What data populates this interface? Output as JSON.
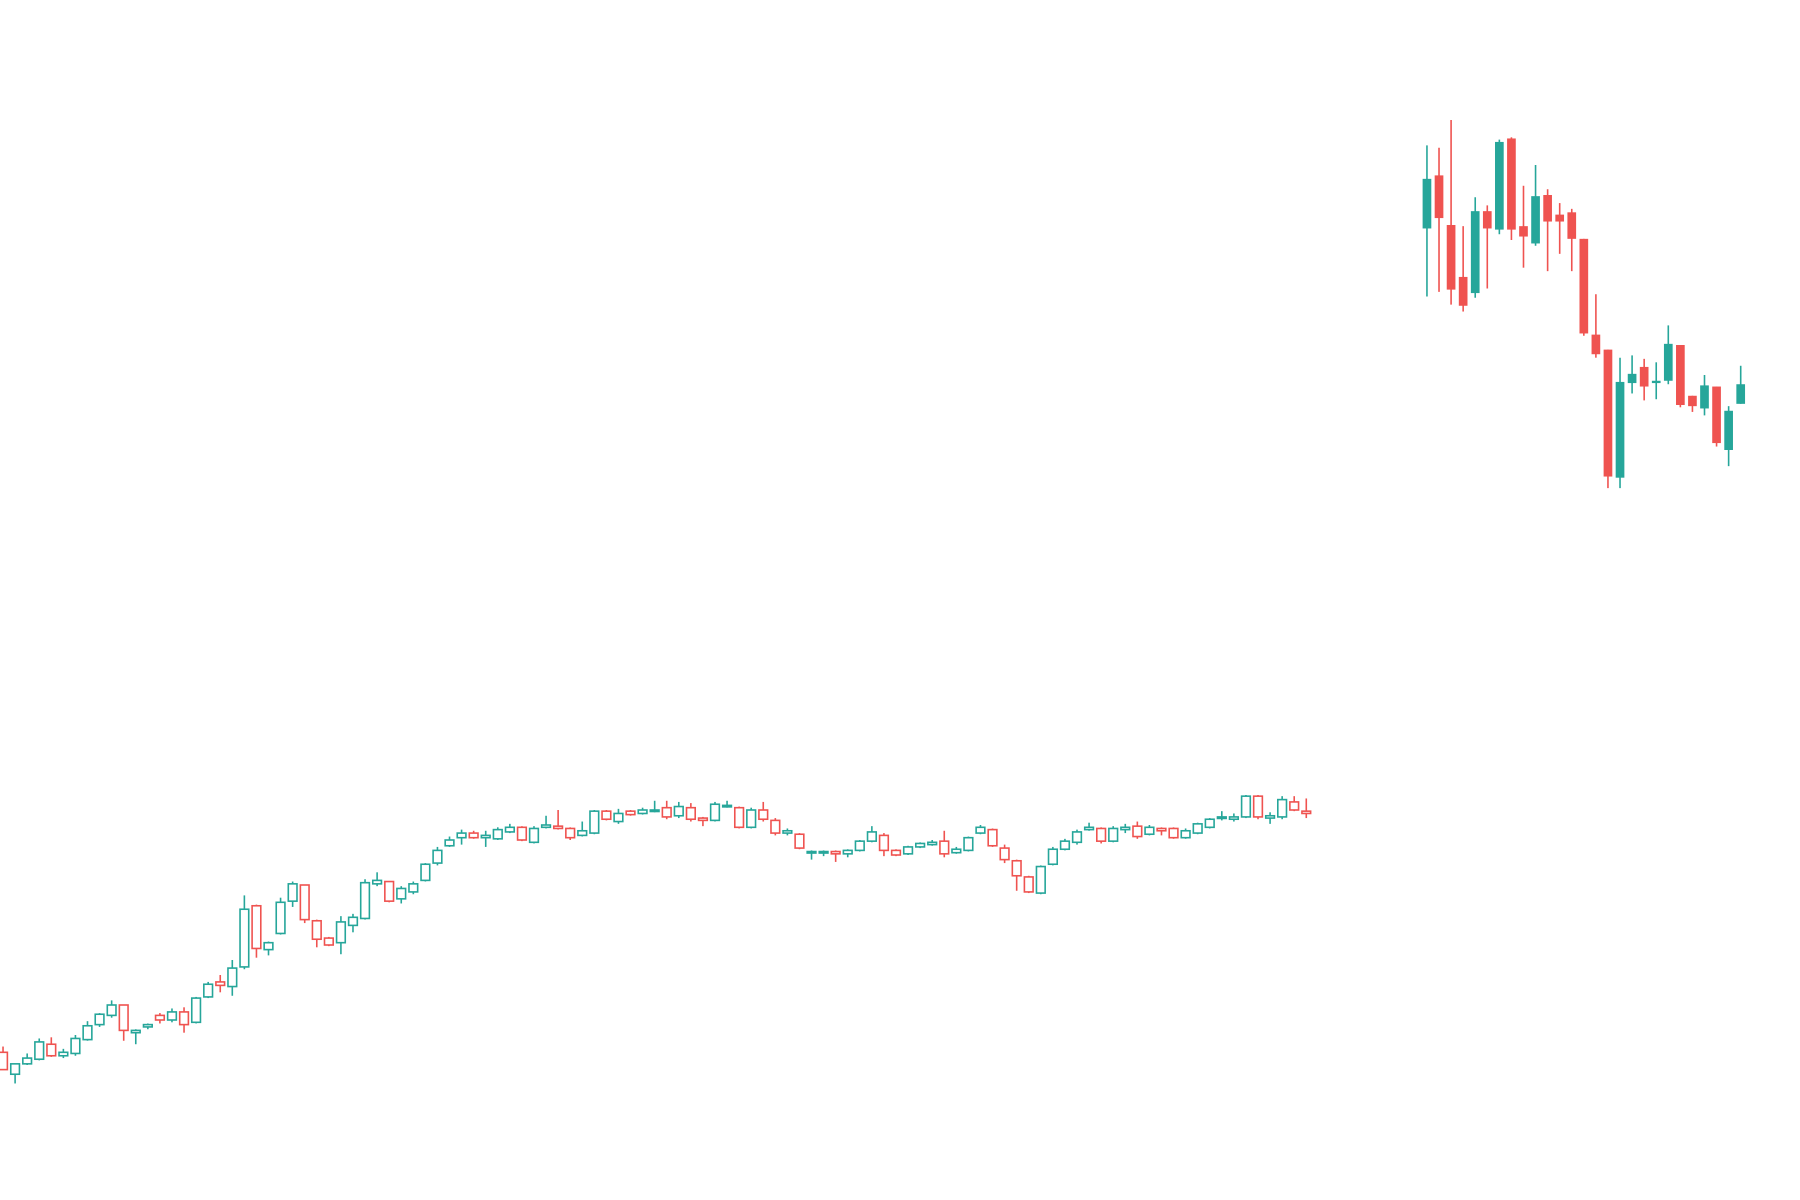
{
  "chart_data": {
    "type": "candlestick",
    "up_color": "#26a69a",
    "down_color": "#ef5350",
    "ylim": [
      0,
      1040
    ],
    "series": [
      {
        "hollow": true,
        "open": [
          128,
          109,
          118,
          122,
          135,
          125,
          127,
          139,
          152,
          160,
          169,
          145,
          150,
          160,
          156,
          163,
          154,
          176,
          189,
          185,
          202,
          255,
          217,
          231,
          259,
          273,
          242,
          227,
          223,
          238,
          244,
          274,
          276,
          261,
          267,
          277,
          292,
          307,
          314,
          318,
          314,
          313,
          319,
          323,
          310,
          323,
          324,
          322,
          316,
          318,
          337,
          328,
          337,
          335,
          337,
          340,
          333,
          340,
          331,
          329,
          341,
          340,
          323,
          338,
          329,
          318,
          317,
          301,
          301,
          302,
          300,
          303,
          311,
          316,
          303,
          300,
          306,
          308,
          311,
          301,
          303,
          318,
          321,
          305,
          294,
          280,
          266,
          291,
          304,
          310,
          321,
          322,
          311,
          321,
          324,
          317,
          322,
          322,
          314,
          318,
          323,
          331,
          330,
          332,
          350,
          331,
          332,
          345,
          337,
          null,
          null,
          null,
          null,
          null,
          null,
          null,
          null,
          null,
          null,
          null,
          null,
          null,
          null,
          null,
          null,
          null,
          null,
          null,
          null,
          null,
          null,
          null,
          null,
          null,
          null,
          null,
          null,
          null,
          null,
          null,
          null,
          null,
          null,
          null,
          null,
          null,
          null,
          null,
          null
        ],
        "high": [
          133,
          118,
          127,
          140,
          141,
          131,
          143,
          155,
          162,
          173,
          169,
          148,
          153,
          162,
          166,
          167,
          176,
          189,
          195,
          208,
          264,
          256,
          224,
          262,
          276,
          273,
          243,
          228,
          246,
          248,
          278,
          284,
          276,
          272,
          276,
          292,
          306,
          315,
          321,
          320,
          320,
          323,
          326,
          324,
          324,
          333,
          338,
          323,
          328,
          338,
          338,
          339,
          338,
          340,
          346,
          346,
          345,
          344,
          332,
          345,
          346,
          341,
          340,
          345,
          331,
          322,
          318,
          303,
          303,
          303,
          304,
          312,
          324,
          318,
          304,
          307,
          310,
          312,
          320,
          306,
          315,
          325,
          322,
          308,
          295,
          281,
          290,
          306,
          313,
          321,
          327,
          323,
          324,
          326,
          328,
          325,
          323,
          323,
          322,
          327,
          331,
          337,
          335,
          351,
          351,
          336,
          350,
          350,
          348,
          null,
          null,
          null,
          null,
          null,
          null,
          null,
          null,
          null,
          null,
          null,
          null,
          null,
          null,
          null,
          null,
          null,
          null,
          null,
          null,
          null,
          null,
          null,
          null,
          null,
          null,
          null,
          null,
          null,
          null,
          null,
          null,
          null,
          null,
          null,
          null,
          null,
          null,
          null,
          null
        ],
        "low": [
          113,
          101,
          117,
          121,
          124,
          123,
          125,
          138,
          150,
          158,
          138,
          135,
          148,
          153,
          154,
          145,
          153,
          175,
          180,
          177,
          200,
          210,
          212,
          230,
          254,
          240,
          219,
          220,
          213,
          232,
          243,
          272,
          258,
          257,
          265,
          276,
          290,
          306,
          308,
          313,
          306,
          312,
          318,
          311,
          309,
          322,
          321,
          312,
          315,
          317,
          329,
          326,
          333,
          334,
          336,
          330,
          331,
          328,
          324,
          328,
          340,
          322,
          322,
          328,
          316,
          316,
          304,
          295,
          298,
          293,
          297,
          302,
          310,
          298,
          298,
          299,
          305,
          307,
          297,
          300,
          302,
          317,
          306,
          292,
          268,
          266,
          265,
          290,
          303,
          308,
          320,
          309,
          310,
          318,
          313,
          316,
          316,
          313,
          313,
          317,
          322,
          329,
          328,
          331,
          330,
          326,
          330,
          337,
          331,
          null,
          null,
          null,
          null,
          null,
          null,
          null,
          null,
          null,
          null,
          null,
          null,
          null,
          null,
          null,
          null,
          null,
          null,
          null,
          null,
          null,
          null,
          null,
          null,
          null,
          null,
          null,
          null,
          null,
          null,
          null,
          null,
          null,
          null,
          null,
          null,
          null,
          null,
          null,
          null
        ],
        "close": [
          113,
          118,
          123,
          137,
          125,
          128,
          140,
          151,
          161,
          169,
          147,
          147,
          152,
          156,
          163,
          152,
          175,
          187,
          186,
          201,
          252,
          218,
          223,
          258,
          274,
          243,
          226,
          221,
          241,
          245,
          275,
          277,
          259,
          270,
          274,
          291,
          303,
          312,
          318,
          314,
          316,
          321,
          323,
          312,
          322,
          325,
          322,
          314,
          320,
          337,
          330,
          335,
          334,
          338,
          338,
          332,
          341,
          330,
          329,
          343,
          342,
          323,
          338,
          330,
          318,
          320,
          305,
          302,
          302,
          300,
          303,
          311,
          319,
          303,
          299,
          306,
          309,
          310,
          300,
          304,
          314,
          323,
          307,
          295,
          281,
          267,
          289,
          304,
          311,
          319,
          323,
          311,
          322,
          323,
          315,
          323,
          320,
          314,
          320,
          326,
          330,
          332,
          332,
          350,
          332,
          333,
          347,
          338,
          335,
          null,
          null,
          null,
          null,
          null,
          null,
          null,
          null,
          null,
          null,
          null,
          null,
          null,
          null,
          null,
          null,
          null,
          null,
          null,
          null,
          null,
          null,
          null,
          null,
          null,
          null,
          null,
          null,
          null,
          null,
          null,
          null,
          null,
          null,
          null,
          null,
          null,
          null,
          null,
          null
        ]
      },
      {
        "hollow": false,
        "open": [
          null,
          null,
          null,
          null,
          null,
          null,
          null,
          null,
          null,
          null,
          null,
          null,
          null,
          null,
          null,
          null,
          null,
          null,
          null,
          null,
          null,
          null,
          null,
          null,
          null,
          null,
          null,
          null,
          null,
          null,
          null,
          null,
          null,
          null,
          null,
          null,
          null,
          null,
          null,
          null,
          null,
          null,
          null,
          null,
          null,
          null,
          null,
          null,
          null,
          null,
          null,
          null,
          null,
          null,
          null,
          null,
          null,
          null,
          null,
          null,
          null,
          null,
          null,
          null,
          null,
          null,
          null,
          null,
          null,
          null,
          null,
          null,
          null,
          null,
          null,
          null,
          null,
          null,
          null,
          null,
          null,
          null,
          null,
          null,
          null,
          null,
          null,
          null,
          null,
          null,
          null,
          null,
          null,
          null,
          null,
          null,
          null,
          null,
          null,
          null,
          null,
          null,
          null,
          null,
          null,
          null,
          null,
          null,
          null,
          null,
          null,
          null,
          null,
          null,
          null,
          null,
          null,
          null,
          842,
          888,
          845,
          800,
          786,
          857,
          841,
          920,
          844,
          829,
          871,
          854,
          856,
          833,
          750,
          737,
          626,
          708,
          722,
          708,
          710,
          741,
          697,
          686,
          705,
          650,
          690,
          null,
          null,
          null,
          null
        ],
        "high": [
          null,
          null,
          null,
          null,
          null,
          null,
          null,
          null,
          null,
          null,
          null,
          null,
          null,
          null,
          null,
          null,
          null,
          null,
          null,
          null,
          null,
          null,
          null,
          null,
          null,
          null,
          null,
          null,
          null,
          null,
          null,
          null,
          null,
          null,
          null,
          null,
          null,
          null,
          null,
          null,
          null,
          null,
          null,
          null,
          null,
          null,
          null,
          null,
          null,
          null,
          null,
          null,
          null,
          null,
          null,
          null,
          null,
          null,
          null,
          null,
          null,
          null,
          null,
          null,
          null,
          null,
          null,
          null,
          null,
          null,
          null,
          null,
          null,
          null,
          null,
          null,
          null,
          null,
          null,
          null,
          null,
          null,
          null,
          null,
          null,
          null,
          null,
          null,
          null,
          null,
          null,
          null,
          null,
          null,
          null,
          null,
          null,
          null,
          null,
          null,
          null,
          null,
          null,
          null,
          null,
          null,
          null,
          null,
          null,
          null,
          null,
          null,
          null,
          null,
          null,
          null,
          null,
          null,
          914,
          912,
          936,
          844,
          869,
          862,
          919,
          921,
          879,
          897,
          876,
          864,
          859,
          833,
          785,
          737,
          730,
          732,
          729,
          726,
          758,
          741,
          697,
          715,
          705,
          688,
          723,
          null,
          null,
          null,
          null
        ],
        "low": [
          null,
          null,
          null,
          null,
          null,
          null,
          null,
          null,
          null,
          null,
          null,
          null,
          null,
          null,
          null,
          null,
          null,
          null,
          null,
          null,
          null,
          null,
          null,
          null,
          null,
          null,
          null,
          null,
          null,
          null,
          null,
          null,
          null,
          null,
          null,
          null,
          null,
          null,
          null,
          null,
          null,
          null,
          null,
          null,
          null,
          null,
          null,
          null,
          null,
          null,
          null,
          null,
          null,
          null,
          null,
          null,
          null,
          null,
          null,
          null,
          null,
          null,
          null,
          null,
          null,
          null,
          null,
          null,
          null,
          null,
          null,
          null,
          null,
          null,
          null,
          null,
          null,
          null,
          null,
          null,
          null,
          null,
          null,
          null,
          null,
          null,
          null,
          null,
          null,
          null,
          null,
          null,
          null,
          null,
          null,
          null,
          null,
          null,
          null,
          null,
          null,
          null,
          null,
          null,
          null,
          null,
          null,
          null,
          null,
          null,
          null,
          null,
          null,
          null,
          null,
          null,
          null,
          null,
          783,
          787,
          776,
          770,
          782,
          790,
          837,
          832,
          808,
          827,
          805,
          820,
          805,
          749,
          730,
          617,
          617,
          699,
          693,
          694,
          707,
          687,
          683,
          680,
          653,
          636,
          690,
          null,
          null,
          null,
          null
        ],
        "close": [
          null,
          null,
          null,
          null,
          null,
          null,
          null,
          null,
          null,
          null,
          null,
          null,
          null,
          null,
          null,
          null,
          null,
          null,
          null,
          null,
          null,
          null,
          null,
          null,
          null,
          null,
          null,
          null,
          null,
          null,
          null,
          null,
          null,
          null,
          null,
          null,
          null,
          null,
          null,
          null,
          null,
          null,
          null,
          null,
          null,
          null,
          null,
          null,
          null,
          null,
          null,
          null,
          null,
          null,
          null,
          null,
          null,
          null,
          null,
          null,
          null,
          null,
          null,
          null,
          null,
          null,
          null,
          null,
          null,
          null,
          null,
          null,
          null,
          null,
          null,
          null,
          null,
          null,
          null,
          null,
          null,
          null,
          null,
          null,
          null,
          null,
          null,
          null,
          null,
          null,
          null,
          null,
          null,
          null,
          null,
          null,
          null,
          null,
          null,
          null,
          null,
          null,
          null,
          null,
          null,
          null,
          null,
          null,
          null,
          null,
          null,
          null,
          null,
          null,
          null,
          null,
          null,
          null,
          885,
          851,
          789,
          775,
          857,
          842,
          917,
          841,
          835,
          870,
          848,
          848,
          833,
          751,
          733,
          627,
          709,
          716,
          705,
          710,
          742,
          689,
          688,
          706,
          656,
          684,
          707,
          null,
          null,
          null,
          null
        ]
      }
    ]
  }
}
